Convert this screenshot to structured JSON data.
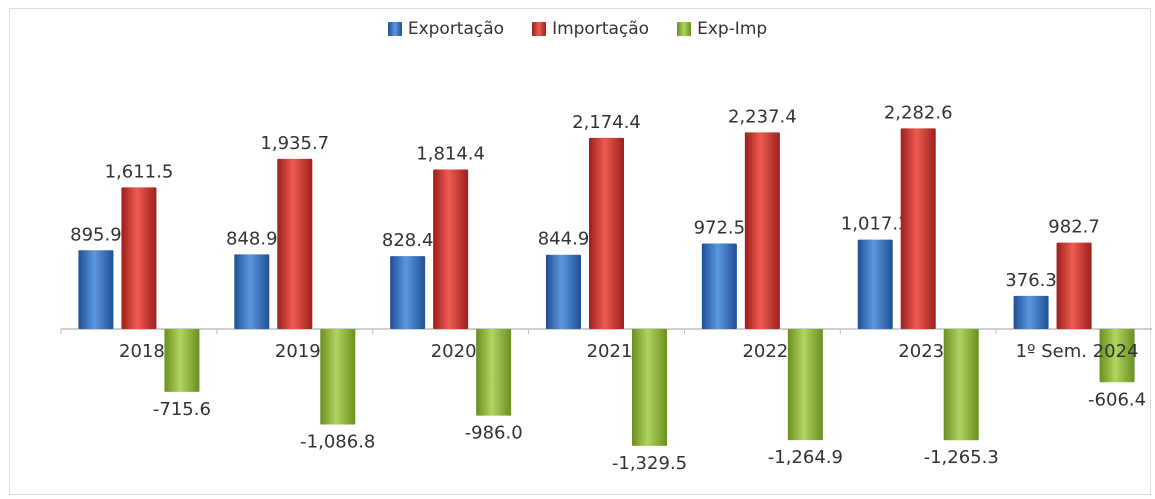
{
  "chart_data": {
    "type": "bar",
    "categories": [
      "2018",
      "2019",
      "2020",
      "2021",
      "2022",
      "2023",
      "1º Sem. 2024"
    ],
    "series": [
      {
        "name": "Exportação",
        "color": "#3d78c6",
        "values": [
          895.9,
          848.9,
          828.4,
          844.9,
          972.5,
          1017.3,
          376.3
        ],
        "labels": [
          "895.9",
          "848.9",
          "828.4",
          "844.9",
          "972.5",
          "1,017.3",
          "376.3"
        ]
      },
      {
        "name": "Importação",
        "color": "#d63a34",
        "values": [
          1611.5,
          1935.7,
          1814.4,
          2174.4,
          2237.4,
          2282.6,
          982.7
        ],
        "labels": [
          "1,611.5",
          "1,935.7",
          "1,814.4",
          "2,174.4",
          "2,237.4",
          "2,282.6",
          "982.7"
        ]
      },
      {
        "name": "Exp-Imp",
        "color": "#94bb3a",
        "values": [
          -715.6,
          -1086.8,
          -986.0,
          -1329.5,
          -1264.9,
          -1265.3,
          -606.4
        ],
        "labels": [
          "-715.6",
          "-1,086.8",
          "-986.0",
          "-1,329.5",
          "-1,264.9",
          "-1,265.3",
          "-606.4"
        ]
      }
    ],
    "legend_position": "top-center",
    "grid": false
  }
}
